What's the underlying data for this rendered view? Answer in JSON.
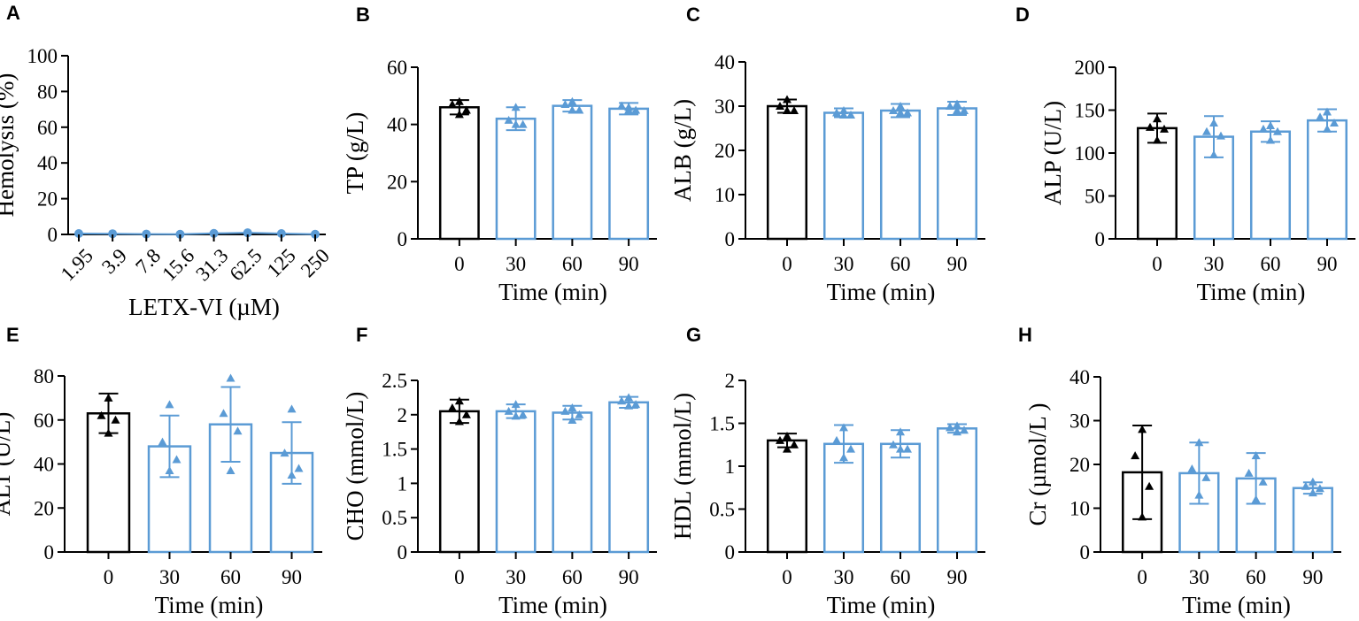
{
  "colors": {
    "control": "#000000",
    "treated": "#5b9bd5",
    "axis": "#000000"
  },
  "chart_data": [
    {
      "panel": "A",
      "type": "line",
      "series_style": "line-markers",
      "xlabel": "LETX-VI (µM)",
      "ylabel": "Hemolysis (%)",
      "categories": [
        "1.95",
        "3.9",
        "7.8",
        "15.6",
        "31.3",
        "62.5",
        "125",
        "250"
      ],
      "values": [
        0.5,
        0.4,
        0.2,
        0.1,
        0.6,
        0.9,
        0.5,
        0.1
      ],
      "ylim": [
        0,
        100
      ],
      "yticks": [
        "0",
        "20",
        "40",
        "60",
        "80",
        "100"
      ]
    },
    {
      "panel": "B",
      "type": "bar",
      "xlabel": "Time (min)",
      "ylabel": "TP (g/L)",
      "categories": [
        "0",
        "30",
        "60",
        "90"
      ],
      "values": [
        46,
        42,
        46.5,
        45.5
      ],
      "errors": [
        2.5,
        4,
        2,
        2
      ],
      "points": [
        [
          48,
          47,
          45,
          43.5
        ],
        [
          46,
          41.5,
          40,
          40
        ],
        [
          48,
          47,
          45,
          45
        ],
        [
          46,
          46.5,
          45,
          45
        ]
      ],
      "ylim": [
        0,
        60
      ],
      "yticks": [
        "0",
        "20",
        "40",
        "60"
      ]
    },
    {
      "panel": "C",
      "type": "bar",
      "xlabel": "Time (min)",
      "ylabel": "ALB (g/L)",
      "categories": [
        "0",
        "30",
        "60",
        "90"
      ],
      "values": [
        30,
        28.5,
        29,
        29.5
      ],
      "errors": [
        1.5,
        1,
        1.5,
        1.5
      ],
      "points": [
        [
          31.5,
          30,
          29,
          29
        ],
        [
          29,
          28.5,
          28,
          28
        ],
        [
          30,
          29,
          28.5,
          28.5
        ],
        [
          30.5,
          30,
          29,
          29
        ]
      ],
      "ylim": [
        0,
        40
      ],
      "yticks": [
        "0",
        "10",
        "20",
        "30",
        "40"
      ]
    },
    {
      "panel": "D",
      "type": "bar",
      "xlabel": "Time (min)",
      "ylabel": "ALP (U/L)",
      "categories": [
        "0",
        "30",
        "60",
        "90"
      ],
      "values": [
        129,
        119,
        125,
        138
      ],
      "errors": [
        17,
        24,
        12,
        13
      ],
      "points": [
        [
          140,
          130,
          128,
          115
        ],
        [
          135,
          125,
          120,
          98
        ],
        [
          132,
          128,
          125,
          115
        ],
        [
          148,
          142,
          135,
          128
        ]
      ],
      "ylim": [
        0,
        200
      ],
      "yticks": [
        "0",
        "50",
        "100",
        "150",
        "200"
      ]
    },
    {
      "panel": "E",
      "type": "bar",
      "xlabel": "Time (min)",
      "ylabel": "ALT (U/L)",
      "categories": [
        "0",
        "30",
        "60",
        "90"
      ],
      "values": [
        63,
        48,
        58,
        45
      ],
      "errors": [
        9,
        14,
        17,
        14
      ],
      "points": [
        [
          70,
          62,
          60,
          54
        ],
        [
          67,
          50,
          42,
          37
        ],
        [
          79,
          63,
          55,
          37
        ],
        [
          65,
          45,
          38,
          35
        ]
      ],
      "ylim": [
        0,
        80
      ],
      "yticks": [
        "0",
        "20",
        "40",
        "60",
        "80"
      ]
    },
    {
      "panel": "F",
      "type": "bar",
      "xlabel": "Time (min)",
      "ylabel": "CHO (mmol/L)",
      "categories": [
        "0",
        "30",
        "60",
        "90"
      ],
      "values": [
        2.05,
        2.05,
        2.03,
        2.18
      ],
      "errors": [
        0.17,
        0.1,
        0.1,
        0.08
      ],
      "points": [
        [
          2.2,
          2.1,
          2.0,
          1.9
        ],
        [
          2.15,
          2.05,
          2.0,
          1.98
        ],
        [
          2.1,
          2.05,
          2.0,
          1.92
        ],
        [
          2.25,
          2.2,
          2.15,
          2.13
        ]
      ],
      "ylim": [
        0,
        2.5
      ],
      "yticks": [
        "0",
        "0.5",
        "1",
        "1.5",
        "2",
        "2.5"
      ]
    },
    {
      "panel": "G",
      "type": "bar",
      "xlabel": "Time (min)",
      "ylabel": "HDL (mmol/L)",
      "categories": [
        "0",
        "30",
        "60",
        "90"
      ],
      "values": [
        1.3,
        1.26,
        1.26,
        1.44
      ],
      "errors": [
        0.08,
        0.22,
        0.16,
        0.05
      ],
      "points": [
        [
          1.35,
          1.3,
          1.25,
          1.2
        ],
        [
          1.45,
          1.3,
          1.2,
          1.1
        ],
        [
          1.4,
          1.25,
          1.2,
          1.2
        ],
        [
          1.47,
          1.45,
          1.42,
          1.4
        ]
      ],
      "ylim": [
        0,
        2
      ],
      "yticks": [
        "0",
        "0.5",
        "1",
        "1.5",
        "2"
      ]
    },
    {
      "panel": "H",
      "type": "bar",
      "xlabel": "Time (min)",
      "ylabel": "Cr (µmol/L )",
      "categories": [
        "0",
        "30",
        "60",
        "90"
      ],
      "values": [
        18.2,
        18,
        16.8,
        14.6
      ],
      "errors": [
        10.7,
        7,
        5.8,
        1.3
      ],
      "points": [
        [
          28,
          22,
          15,
          8
        ],
        [
          25,
          19,
          17,
          13
        ],
        [
          22,
          18,
          16,
          12
        ],
        [
          16,
          15,
          14.5,
          13.5
        ]
      ],
      "ylim": [
        0,
        40
      ],
      "yticks": [
        "0",
        "10",
        "20",
        "30",
        "40"
      ]
    }
  ]
}
